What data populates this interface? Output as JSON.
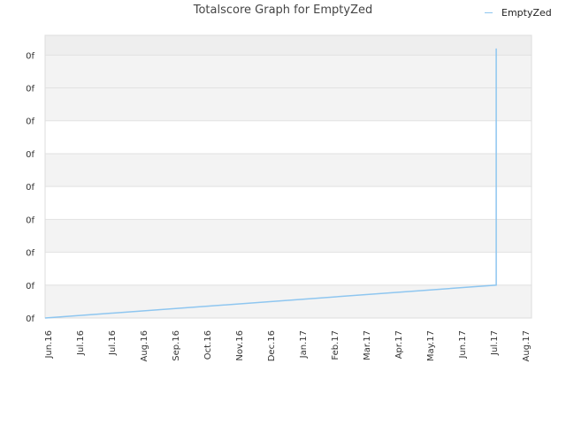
{
  "chart_data": {
    "type": "line",
    "title": "Totalscore Graph for EmptyZed",
    "xlabel": "",
    "ylabel": "",
    "x_tick_labels": [
      "Jun.16",
      "Jul.16",
      "Jul.16",
      "Aug.16",
      "Sep.16",
      "Oct.16",
      "Nov.16",
      "Dec.16",
      "Jan.17",
      "Feb.17",
      "Mar.17",
      "Apr.17",
      "May.17",
      "Jun.17",
      "Jul.17",
      "Aug.17"
    ],
    "y_tick_labels": [
      "0f",
      "0f",
      "0f",
      "0f",
      "0f",
      "0f",
      "0f",
      "0f",
      "0f"
    ],
    "grid": true,
    "legend_position": "top-right",
    "series": [
      {
        "name": "EmptyZed",
        "color": "#8ec6f0",
        "x": [
          "2016-06-01",
          "2017-07-15",
          "2017-07-15"
        ],
        "y": [
          0,
          1,
          8.2
        ]
      }
    ],
    "x_range": [
      "2016-06-01",
      "2017-08-16"
    ],
    "ylim": [
      0,
      8.6
    ]
  }
}
